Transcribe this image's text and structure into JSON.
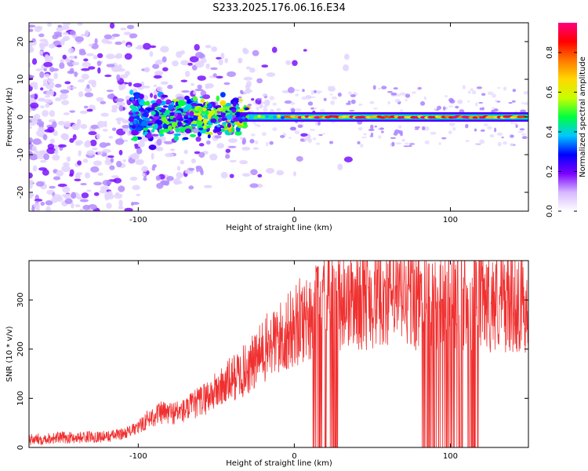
{
  "chart_data": [
    {
      "type": "heatmap",
      "title": "S233.2025.176.06.16.E34",
      "xlabel": "Height of straight line (km)",
      "ylabel": "Frequency (Hz)",
      "xlim": [
        -170,
        150
      ],
      "ylim": [
        -25,
        25
      ],
      "xticks": [
        -100,
        0,
        100
      ],
      "yticks": [
        -20,
        -10,
        0,
        10,
        20
      ],
      "colorbar": {
        "label": "Normalized spectral amplitude",
        "range": [
          0,
          0.95
        ],
        "ticks": [
          0.0,
          0.2,
          0.4,
          0.6,
          0.8
        ],
        "colormap": [
          "#ffffff",
          "#d6b8ff",
          "#7b00ff",
          "#0000ff",
          "#00c8ff",
          "#00ff40",
          "#c8ff00",
          "#ffd800",
          "#ff7800",
          "#ff0000",
          "#ff0080"
        ]
      },
      "description_of_features": {
        "carrier_line_hz": 0,
        "carrier_start_km": -30,
        "carrier_peak_start_km": -5,
        "noise_region_end_km": -100
      }
    },
    {
      "type": "line",
      "title": "",
      "xlabel": "Height of straight line (km)",
      "ylabel": "SNR (10 * v/v)",
      "xlim": [
        -170,
        150
      ],
      "ylim": [
        0,
        380
      ],
      "xticks": [
        -100,
        0,
        100
      ],
      "yticks": [
        0,
        100,
        200,
        300
      ],
      "color": "#f03030",
      "series": [
        {
          "x": [
            -170,
            -160,
            -150,
            -140,
            -130,
            -120,
            -110,
            -100,
            -95,
            -90,
            -85,
            -80,
            -75,
            -70,
            -65,
            -60,
            -55,
            -50,
            -45,
            -40,
            -35,
            -30,
            -25,
            -20,
            -15,
            -10,
            -5,
            0,
            5,
            10,
            15,
            20,
            25,
            30,
            35,
            40,
            50,
            60,
            70,
            80,
            90,
            100,
            110,
            120,
            130,
            140,
            150
          ],
          "values": [
            15,
            18,
            20,
            20,
            22,
            22,
            28,
            40,
            55,
            65,
            70,
            70,
            72,
            75,
            85,
            95,
            105,
            115,
            125,
            140,
            150,
            160,
            175,
            195,
            210,
            220,
            230,
            245,
            260,
            270,
            280,
            290,
            295,
            300,
            300,
            300,
            305,
            310,
            305,
            300,
            300,
            295,
            300,
            300,
            295,
            295,
            290
          ]
        }
      ],
      "dropouts_km": [
        [
          12,
          28
        ],
        [
          82,
          118
        ]
      ]
    }
  ]
}
